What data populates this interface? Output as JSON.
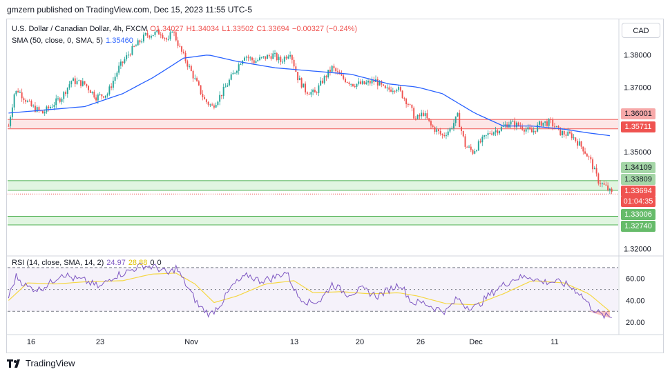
{
  "header": {
    "published": "gmzern published on TradingView.com, Dec 15, 2023 11:55 UTC-5"
  },
  "legend": {
    "symbol": "U.S. Dollar / Canadian Dollar, 4h, FXCM",
    "open": "O1.34027",
    "high": "H1.34034",
    "low": "L1.33502",
    "close": "C1.33694",
    "change": "−0.00327 (−0.24%)",
    "sma_label": "SMA (50, close, 0, SMA, 5)",
    "sma_value": "1.35460",
    "rsi_label": "RSI (14, close, SMA, 14, 2)",
    "rsi_value": "24.97",
    "rsi_sma_value": "28.88",
    "rsi_extra1": "0",
    "rsi_extra2": "0"
  },
  "currency_button": "CAD",
  "price_axis": [
    "1.38000",
    "1.37000",
    "1.35000",
    "1.32000"
  ],
  "rsi_axis": [
    "60.00",
    "40.00",
    "20.00"
  ],
  "time_axis": [
    "16",
    "23",
    "Nov",
    "13",
    "20",
    "26",
    "Dec",
    "11"
  ],
  "price_labels": {
    "red_zone_top": "1.36001",
    "red_zone_bottom": "1.35711",
    "green_zone_top": "1.34109",
    "green_zone_bottom": "1.33809",
    "current_price": "1.33694",
    "countdown": "01:04:35",
    "green_zone2_top": "1.33006",
    "green_zone2_bottom": "1.32740"
  },
  "colors": {
    "up": "#26a69a",
    "down": "#ef5350",
    "sma": "#2962ff",
    "rsi": "#7e57c2",
    "rsi_sma": "#f5d742",
    "red_zone_fill": "#fde2e2",
    "red_zone_line": "#ef5350",
    "green_zone_fill": "#dcf3dc",
    "green_zone_line": "#4caf50"
  },
  "footer": {
    "brand": "TradingView"
  },
  "chart_data": {
    "type": "candlestick",
    "title": "U.S. Dollar / Canadian Dollar, 4h, FXCM",
    "ylim": [
      1.318,
      1.391
    ],
    "rsi_ylim": [
      10,
      80
    ],
    "zones": [
      {
        "name": "resistance",
        "top": 1.36001,
        "bottom": 1.35711
      },
      {
        "name": "support",
        "top": 1.34109,
        "bottom": 1.33809
      },
      {
        "name": "support2",
        "top": 1.33006,
        "bottom": 1.3274
      }
    ],
    "close_anchors": [
      [
        0,
        1.358
      ],
      [
        3,
        1.368
      ],
      [
        5,
        1.369
      ],
      [
        12,
        1.364
      ],
      [
        18,
        1.362
      ],
      [
        22,
        1.364
      ],
      [
        28,
        1.367
      ],
      [
        33,
        1.372
      ],
      [
        40,
        1.371
      ],
      [
        46,
        1.367
      ],
      [
        52,
        1.368
      ],
      [
        58,
        1.376
      ],
      [
        64,
        1.381
      ],
      [
        72,
        1.386
      ],
      [
        80,
        1.387
      ],
      [
        84,
        1.384
      ],
      [
        86,
        1.388
      ],
      [
        90,
        1.382
      ],
      [
        95,
        1.376
      ],
      [
        99,
        1.371
      ],
      [
        103,
        1.366
      ],
      [
        107,
        1.364
      ],
      [
        112,
        1.368
      ],
      [
        118,
        1.374
      ],
      [
        124,
        1.38
      ],
      [
        129,
        1.378
      ],
      [
        134,
        1.379
      ],
      [
        139,
        1.38
      ],
      [
        143,
        1.378
      ],
      [
        148,
        1.381
      ],
      [
        152,
        1.373
      ],
      [
        156,
        1.369
      ],
      [
        161,
        1.368
      ],
      [
        165,
        1.372
      ],
      [
        170,
        1.376
      ],
      [
        175,
        1.373
      ],
      [
        181,
        1.371
      ],
      [
        187,
        1.371
      ],
      [
        193,
        1.372
      ],
      [
        198,
        1.369
      ],
      [
        204,
        1.37
      ],
      [
        210,
        1.365
      ],
      [
        214,
        1.36
      ],
      [
        218,
        1.362
      ],
      [
        222,
        1.358
      ],
      [
        228,
        1.355
      ],
      [
        232,
        1.357
      ],
      [
        236,
        1.361
      ],
      [
        240,
        1.352
      ],
      [
        244,
        1.35
      ],
      [
        248,
        1.353
      ],
      [
        253,
        1.356
      ],
      [
        258,
        1.357
      ],
      [
        263,
        1.359
      ],
      [
        269,
        1.358
      ],
      [
        275,
        1.356
      ],
      [
        280,
        1.359
      ],
      [
        285,
        1.359
      ],
      [
        290,
        1.356
      ],
      [
        296,
        1.355
      ],
      [
        302,
        1.351
      ],
      [
        306,
        1.347
      ],
      [
        310,
        1.341
      ],
      [
        314,
        1.339
      ],
      [
        317,
        1.337
      ]
    ],
    "sma_anchors": [
      [
        0,
        1.362
      ],
      [
        20,
        1.363
      ],
      [
        40,
        1.364
      ],
      [
        60,
        1.368
      ],
      [
        76,
        1.373
      ],
      [
        92,
        1.379
      ],
      [
        105,
        1.38
      ],
      [
        120,
        1.378
      ],
      [
        140,
        1.376
      ],
      [
        160,
        1.375
      ],
      [
        180,
        1.374
      ],
      [
        200,
        1.371
      ],
      [
        215,
        1.37
      ],
      [
        228,
        1.368
      ],
      [
        245,
        1.362
      ],
      [
        260,
        1.358
      ],
      [
        275,
        1.358
      ],
      [
        292,
        1.357
      ],
      [
        303,
        1.356
      ],
      [
        316,
        1.355
      ]
    ],
    "rsi_anchors": [
      [
        0,
        43
      ],
      [
        4,
        62
      ],
      [
        10,
        52
      ],
      [
        16,
        50
      ],
      [
        22,
        56
      ],
      [
        28,
        65
      ],
      [
        34,
        60
      ],
      [
        40,
        58
      ],
      [
        48,
        52
      ],
      [
        55,
        62
      ],
      [
        62,
        66
      ],
      [
        70,
        72
      ],
      [
        78,
        70
      ],
      [
        84,
        64
      ],
      [
        88,
        70
      ],
      [
        92,
        58
      ],
      [
        100,
        35
      ],
      [
        106,
        27
      ],
      [
        112,
        38
      ],
      [
        118,
        54
      ],
      [
        126,
        63
      ],
      [
        132,
        58
      ],
      [
        138,
        60
      ],
      [
        146,
        66
      ],
      [
        152,
        44
      ],
      [
        158,
        38
      ],
      [
        164,
        40
      ],
      [
        170,
        55
      ],
      [
        178,
        46
      ],
      [
        186,
        50
      ],
      [
        194,
        44
      ],
      [
        200,
        50
      ],
      [
        206,
        55
      ],
      [
        212,
        38
      ],
      [
        218,
        38
      ],
      [
        224,
        33
      ],
      [
        230,
        30
      ],
      [
        236,
        42
      ],
      [
        240,
        35
      ],
      [
        246,
        34
      ],
      [
        252,
        44
      ],
      [
        258,
        52
      ],
      [
        266,
        60
      ],
      [
        274,
        62
      ],
      [
        280,
        57
      ],
      [
        288,
        57
      ],
      [
        294,
        54
      ],
      [
        300,
        47
      ],
      [
        306,
        34
      ],
      [
        312,
        26
      ],
      [
        316,
        25
      ]
    ],
    "rsi_sma_anchors": [
      [
        0,
        40
      ],
      [
        10,
        56
      ],
      [
        25,
        55
      ],
      [
        40,
        57
      ],
      [
        60,
        58
      ],
      [
        75,
        64
      ],
      [
        88,
        65
      ],
      [
        98,
        55
      ],
      [
        108,
        38
      ],
      [
        120,
        44
      ],
      [
        135,
        55
      ],
      [
        150,
        58
      ],
      [
        160,
        47
      ],
      [
        175,
        48
      ],
      [
        190,
        46
      ],
      [
        205,
        47
      ],
      [
        215,
        44
      ],
      [
        230,
        37
      ],
      [
        245,
        36
      ],
      [
        260,
        46
      ],
      [
        275,
        58
      ],
      [
        292,
        56
      ],
      [
        305,
        46
      ],
      [
        316,
        30
      ]
    ],
    "rsi_levels": [
      70,
      50,
      30
    ],
    "num_candles": 318
  }
}
